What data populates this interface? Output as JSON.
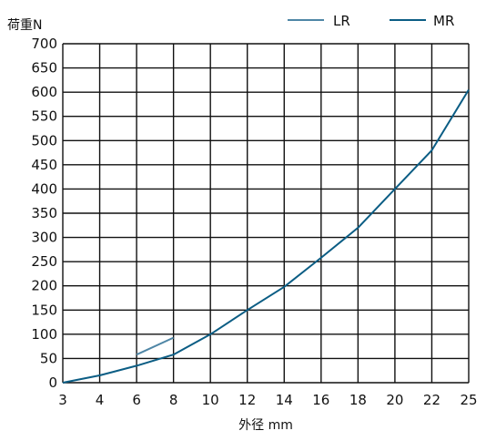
{
  "chart_data": {
    "type": "line",
    "xlabel": "外径 mm",
    "ylabel": "荷重N",
    "x_ticks": [
      3,
      4,
      6,
      8,
      10,
      12,
      14,
      16,
      18,
      20,
      22,
      25
    ],
    "y_ticks": [
      0,
      50,
      100,
      150,
      200,
      250,
      300,
      350,
      400,
      450,
      500,
      550,
      600,
      650,
      700
    ],
    "ylim": [
      0,
      700
    ],
    "grid": true,
    "legend_position": "top-right",
    "series": [
      {
        "name": "LR",
        "color": "#4f86a6",
        "points": [
          [
            6,
            58
          ],
          [
            8,
            93
          ]
        ]
      },
      {
        "name": "MR",
        "color": "#0b5d84",
        "points": [
          [
            3,
            0
          ],
          [
            4,
            15
          ],
          [
            6,
            35
          ],
          [
            8,
            58
          ],
          [
            10,
            100
          ],
          [
            12,
            150
          ],
          [
            14,
            198
          ],
          [
            16,
            258
          ],
          [
            18,
            320
          ],
          [
            20,
            400
          ],
          [
            22,
            480
          ],
          [
            25,
            605
          ]
        ]
      }
    ]
  }
}
